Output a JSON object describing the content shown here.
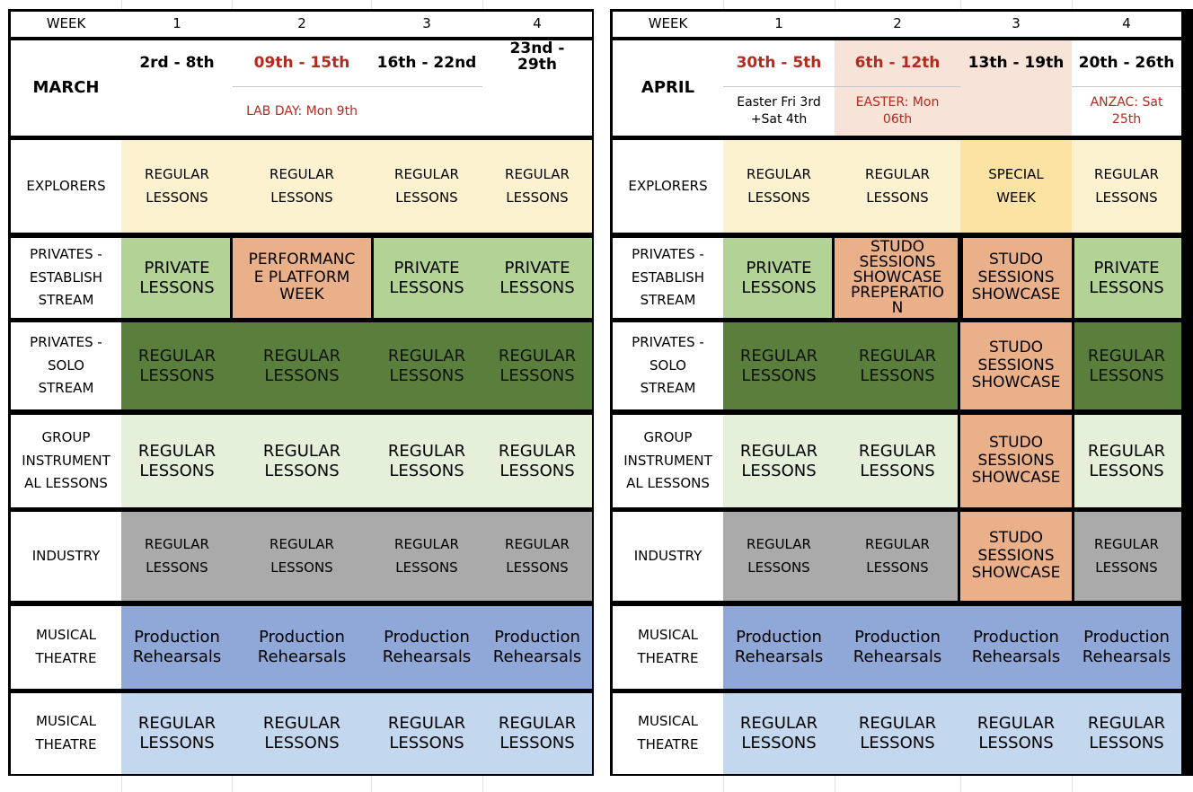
{
  "week_label": "WEEK",
  "week_numbers": [
    "1",
    "2",
    "3",
    "4"
  ],
  "row_labels": {
    "explorers": "EXPLORERS",
    "privates_establish": [
      "PRIVATES -",
      "ESTABLISH",
      "STREAM"
    ],
    "privates_solo": [
      "PRIVATES -",
      "SOLO",
      "STREAM"
    ],
    "group": [
      "GROUP",
      "INSTRUMENT",
      "AL LESSONS"
    ],
    "industry": "INDUSTRY",
    "musical_theatre": [
      "MUSICAL",
      "THEATRE"
    ]
  },
  "cell_text": {
    "regular_lessons": [
      "REGULAR",
      "LESSONS"
    ],
    "private_lessons": [
      "PRIVATE",
      "LESSONS"
    ],
    "production_rehearsals": [
      "Production",
      "Rehearsals"
    ],
    "special_week": [
      "SPECIAL",
      "WEEK"
    ],
    "performance_platform": [
      "PERFORMANC",
      "E PLATFORM",
      "WEEK"
    ],
    "studo_showcase": [
      "STUDO",
      "SESSIONS",
      "SHOWCASE"
    ],
    "studo_preparation": [
      "STUDO",
      "SESSIONS",
      "SHOWCASE",
      "PREPERATIO",
      "N"
    ]
  },
  "march": {
    "month": "MARCH",
    "dates": [
      "2rd - 8th",
      "09th - 15th",
      "16th - 22nd",
      "23nd - 29th"
    ],
    "notes": [
      "",
      "LAB DAY: Mon 9th",
      "",
      ""
    ]
  },
  "april": {
    "month": "APRIL",
    "dates": [
      "30th - 5th",
      "6th - 12th",
      "13th - 19th",
      "20th - 26th"
    ],
    "notes": [
      "Easter Fri 3rd +Sat 4th",
      "EASTER: Mon 06th",
      "",
      "ANZAC: Sat 25th"
    ]
  },
  "colors": {
    "red_text": "#b42a1e",
    "cream": "#fdf2d0",
    "yellow": "#fbe4a3",
    "light_green": "#b2d296",
    "orange": "#eab08a",
    "dark_green": "#5a7f3d",
    "pale_green": "#e4f0da",
    "grey": "#aaaaaa",
    "blue": "#8fa8d7",
    "light_blue": "#c3d7ee",
    "pink": "#f8e3d8"
  }
}
